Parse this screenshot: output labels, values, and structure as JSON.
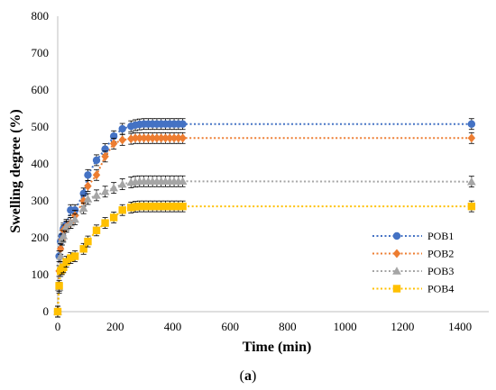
{
  "chart_data": {
    "type": "line",
    "title": "",
    "xlabel": "Time (min)",
    "ylabel": "Swelling degree (%)",
    "xlim": [
      0,
      1500
    ],
    "ylim": [
      0,
      800
    ],
    "xticks": [
      0,
      200,
      400,
      600,
      800,
      1000,
      1200,
      1400
    ],
    "yticks": [
      0,
      100,
      200,
      300,
      400,
      500,
      600,
      700,
      800
    ],
    "legend_position": "right",
    "grid": false,
    "caption": "(a)",
    "caption_letter": "a",
    "series": [
      {
        "name": "POB1",
        "color": "#4472C4",
        "marker": "circle",
        "x": [
          0,
          5,
          10,
          15,
          20,
          30,
          45,
          60,
          90,
          105,
          135,
          165,
          195,
          225,
          255,
          270,
          285,
          300,
          315,
          330,
          345,
          360,
          375,
          390,
          405,
          420,
          435,
          1440
        ],
        "y": [
          0,
          150,
          190,
          205,
          225,
          235,
          275,
          275,
          320,
          370,
          410,
          440,
          475,
          495,
          502,
          505,
          507,
          508,
          508,
          508,
          508,
          508,
          508,
          508,
          508,
          508,
          508,
          508
        ]
      },
      {
        "name": "POB2",
        "color": "#ED7D31",
        "marker": "diamond",
        "x": [
          0,
          5,
          10,
          15,
          20,
          30,
          45,
          60,
          90,
          105,
          135,
          165,
          195,
          225,
          255,
          270,
          285,
          300,
          315,
          330,
          345,
          360,
          375,
          390,
          405,
          420,
          435,
          1440
        ],
        "y": [
          0,
          110,
          170,
          195,
          220,
          230,
          240,
          260,
          300,
          340,
          370,
          420,
          455,
          465,
          468,
          470,
          470,
          470,
          470,
          470,
          470,
          470,
          470,
          470,
          470,
          470,
          470,
          470
        ]
      },
      {
        "name": "POB3",
        "color": "#A5A5A5",
        "marker": "triangle",
        "x": [
          0,
          5,
          10,
          15,
          20,
          30,
          45,
          60,
          90,
          105,
          135,
          165,
          195,
          225,
          255,
          270,
          285,
          300,
          315,
          330,
          345,
          360,
          375,
          390,
          405,
          420,
          435,
          1440
        ],
        "y": [
          0,
          65,
          150,
          195,
          205,
          230,
          240,
          250,
          280,
          305,
          315,
          325,
          335,
          345,
          350,
          352,
          353,
          353,
          353,
          353,
          353,
          353,
          353,
          353,
          353,
          353,
          353,
          352
        ]
      },
      {
        "name": "POB4",
        "color": "#FFC000",
        "marker": "square",
        "x": [
          0,
          5,
          10,
          15,
          20,
          30,
          45,
          60,
          90,
          105,
          135,
          165,
          195,
          225,
          255,
          270,
          285,
          300,
          315,
          330,
          345,
          360,
          375,
          390,
          405,
          420,
          435,
          1440
        ],
        "y": [
          0,
          70,
          110,
          115,
          120,
          135,
          145,
          150,
          170,
          190,
          220,
          240,
          255,
          275,
          282,
          284,
          285,
          285,
          285,
          285,
          285,
          285,
          285,
          285,
          285,
          285,
          285,
          285
        ]
      }
    ]
  }
}
